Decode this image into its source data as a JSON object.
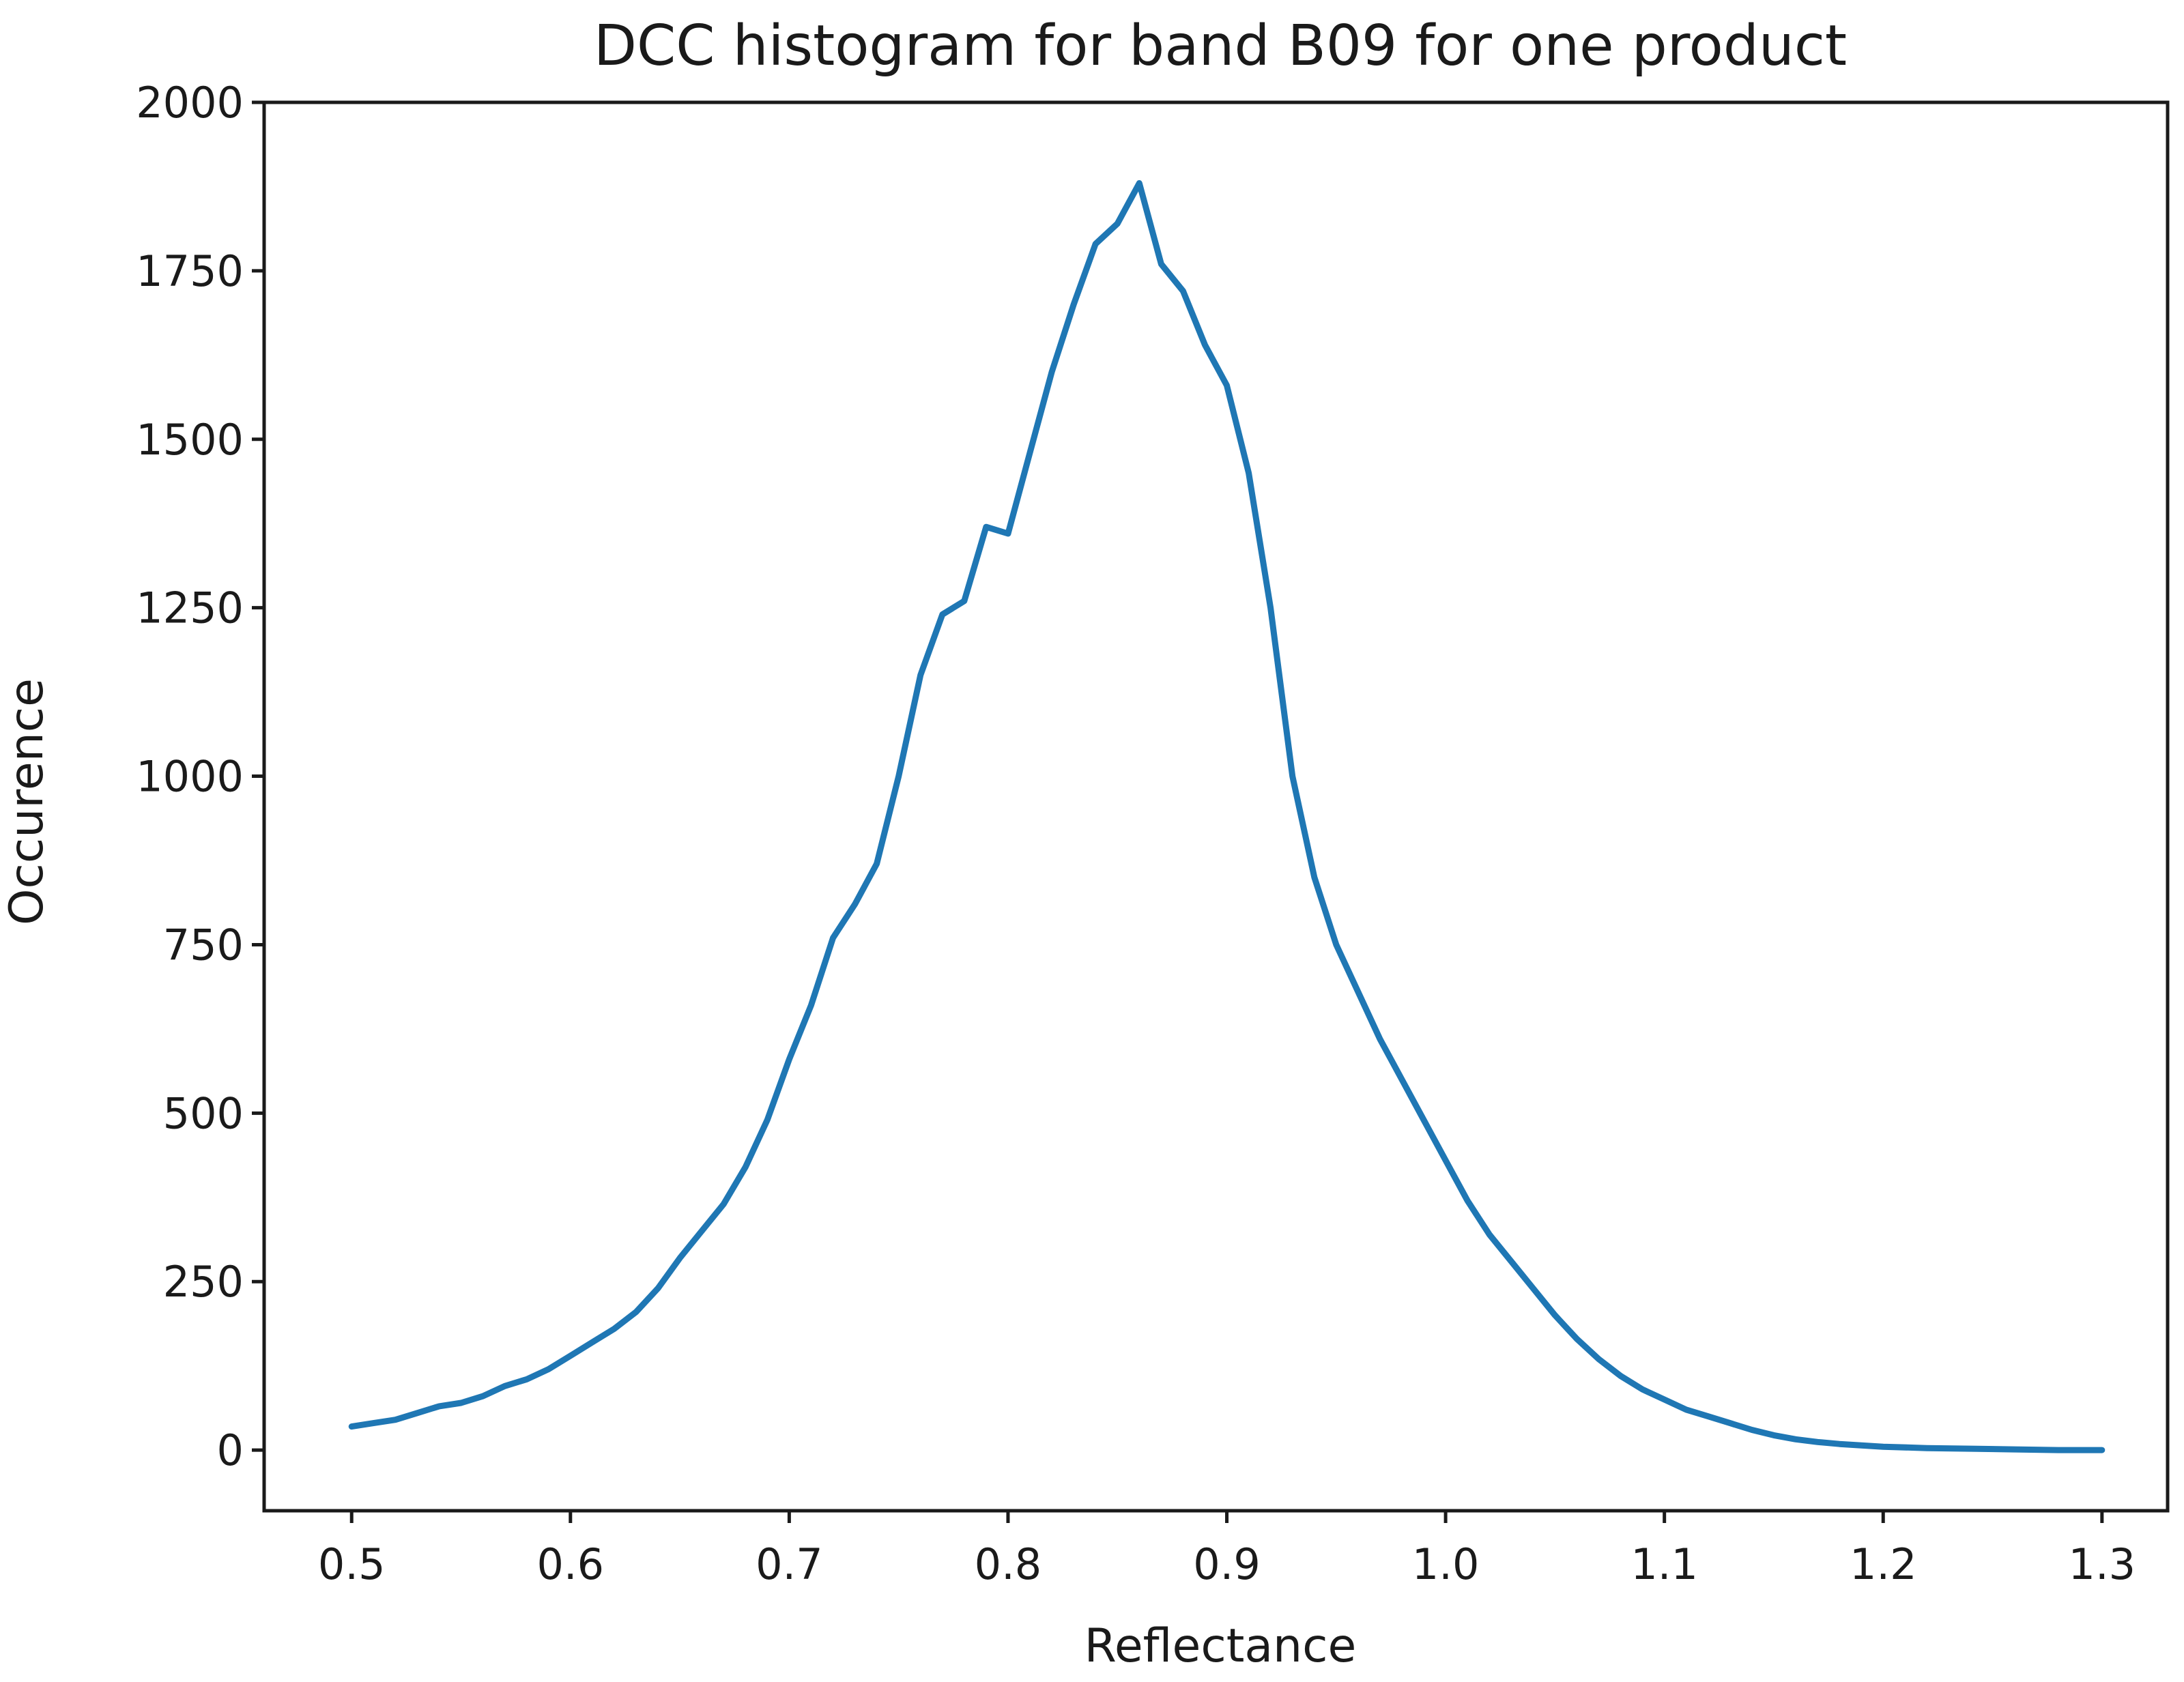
{
  "chart_data": {
    "type": "line",
    "title": "DCC histogram for band B09 for one product",
    "xlabel": "Reflectance",
    "ylabel": "Occurence",
    "xlim": [
      0.46,
      1.33
    ],
    "ylim": [
      -90,
      2000
    ],
    "xticks": [
      0.5,
      0.6,
      0.7,
      0.8,
      0.9,
      1.0,
      1.1,
      1.2,
      1.3
    ],
    "xtick_labels": [
      "0.5",
      "0.6",
      "0.7",
      "0.8",
      "0.9",
      "1.0",
      "1.1",
      "1.2",
      "1.3"
    ],
    "yticks": [
      0,
      250,
      500,
      750,
      1000,
      1250,
      1500,
      1750,
      2000
    ],
    "ytick_labels": [
      "0",
      "250",
      "500",
      "750",
      "1000",
      "1250",
      "1500",
      "1750",
      "2000"
    ],
    "grid": false,
    "series": [
      {
        "name": "B09",
        "color": "#1f77b4",
        "x": [
          0.5,
          0.51,
          0.52,
          0.53,
          0.54,
          0.55,
          0.56,
          0.57,
          0.58,
          0.59,
          0.6,
          0.61,
          0.62,
          0.63,
          0.64,
          0.65,
          0.66,
          0.67,
          0.68,
          0.69,
          0.7,
          0.71,
          0.72,
          0.73,
          0.74,
          0.75,
          0.76,
          0.77,
          0.78,
          0.79,
          0.8,
          0.81,
          0.82,
          0.83,
          0.84,
          0.85,
          0.86,
          0.87,
          0.88,
          0.89,
          0.9,
          0.91,
          0.92,
          0.93,
          0.94,
          0.95,
          0.96,
          0.97,
          0.98,
          0.99,
          1.0,
          1.01,
          1.02,
          1.03,
          1.04,
          1.05,
          1.06,
          1.07,
          1.08,
          1.09,
          1.1,
          1.11,
          1.12,
          1.13,
          1.14,
          1.15,
          1.16,
          1.17,
          1.18,
          1.19,
          1.2,
          1.22,
          1.24,
          1.26,
          1.28,
          1.3
        ],
        "values": [
          35,
          40,
          45,
          55,
          65,
          70,
          80,
          95,
          105,
          120,
          140,
          160,
          180,
          205,
          240,
          285,
          325,
          365,
          420,
          490,
          580,
          660,
          760,
          810,
          870,
          1000,
          1150,
          1240,
          1260,
          1370,
          1360,
          1480,
          1600,
          1700,
          1790,
          1820,
          1880,
          1760,
          1720,
          1640,
          1580,
          1450,
          1250,
          1000,
          850,
          750,
          680,
          610,
          550,
          490,
          430,
          370,
          320,
          280,
          240,
          200,
          165,
          135,
          110,
          90,
          75,
          60,
          50,
          40,
          30,
          22,
          16,
          12,
          9,
          7,
          5,
          3,
          2,
          1,
          0,
          0
        ]
      }
    ]
  }
}
